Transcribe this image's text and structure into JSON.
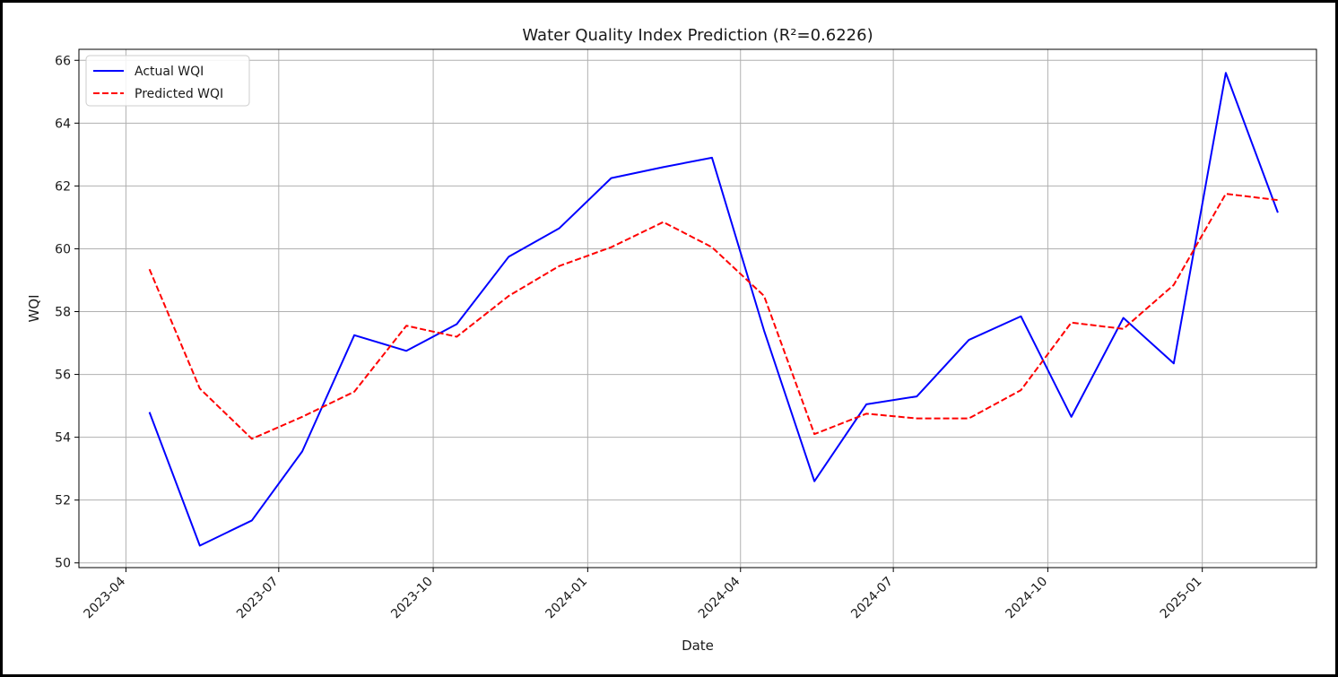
{
  "chart_data": {
    "type": "line",
    "title": "Water Quality Index Prediction (R²=0.6226)",
    "xlabel": "Date",
    "ylabel": "WQI",
    "x_axis": "date",
    "xlim": [
      "2023-03-04",
      "2025-03-10"
    ],
    "ylim": [
      49.85,
      66.35
    ],
    "grid": true,
    "legend_position": "top-left",
    "xticks": [
      "2023-04",
      "2023-07",
      "2023-10",
      "2024-01",
      "2024-04",
      "2024-07",
      "2024-10",
      "2025-01"
    ],
    "yticks": [
      50,
      52,
      54,
      56,
      58,
      60,
      62,
      64,
      66
    ],
    "x": [
      "2023-04-15",
      "2023-05-15",
      "2023-06-15",
      "2023-07-15",
      "2023-08-15",
      "2023-09-15",
      "2023-10-15",
      "2023-11-15",
      "2023-12-15",
      "2024-01-15",
      "2024-02-15",
      "2024-03-15",
      "2024-04-15",
      "2024-05-15",
      "2024-06-15",
      "2024-07-15",
      "2024-08-15",
      "2024-09-15",
      "2024-10-15",
      "2024-11-15",
      "2024-12-15",
      "2025-01-15",
      "2025-02-15"
    ],
    "series": [
      {
        "name": "Actual WQI",
        "color": "#0000ff",
        "style": "solid",
        "values": [
          54.8,
          50.55,
          51.35,
          53.55,
          57.25,
          56.75,
          57.6,
          59.75,
          60.65,
          62.25,
          62.6,
          62.9,
          57.4,
          52.6,
          55.05,
          55.3,
          57.1,
          57.85,
          54.65,
          57.8,
          56.35,
          65.6,
          61.15
        ]
      },
      {
        "name": "Predicted WQI",
        "color": "#ff0000",
        "style": "dashed",
        "values": [
          59.35,
          55.55,
          53.95,
          54.65,
          55.45,
          57.55,
          57.2,
          58.5,
          59.45,
          60.05,
          60.85,
          60.05,
          58.5,
          54.1,
          54.75,
          54.6,
          54.6,
          55.5,
          57.65,
          57.45,
          58.85,
          61.75,
          61.55
        ]
      }
    ]
  }
}
